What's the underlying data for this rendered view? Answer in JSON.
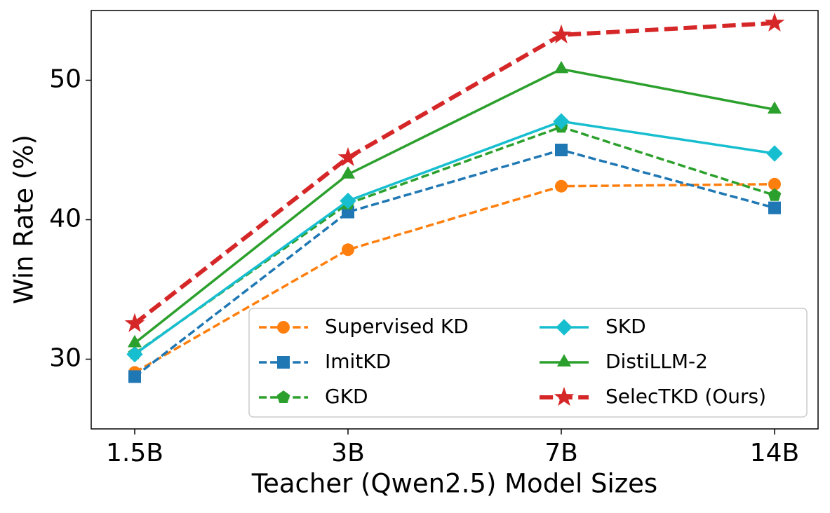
{
  "chart_data": {
    "type": "line",
    "xlabel": "Teacher (Qwen2.5) Model Sizes",
    "ylabel": "Win Rate (%)",
    "categories": [
      "1.5B",
      "3B",
      "7B",
      "14B"
    ],
    "ylim": [
      25,
      55
    ],
    "yticks": [
      30,
      40,
      50
    ],
    "legend": "lower right",
    "series": [
      {
        "name": "Supervised KD",
        "color": "#ff7f0e",
        "marker": "circle",
        "linestyle": "dashed",
        "linewidth": 3.5,
        "values": [
          29.05,
          37.85,
          42.4,
          42.55
        ]
      },
      {
        "name": "ImitKD",
        "color": "#1f77b4",
        "marker": "square",
        "linestyle": "dashed",
        "linewidth": 3.5,
        "values": [
          28.75,
          40.55,
          45.0,
          40.85
        ]
      },
      {
        "name": "GKD",
        "color": "#2ca02c",
        "marker": "pentagon",
        "linestyle": "dashed",
        "linewidth": 3.5,
        "values": [
          30.4,
          41.15,
          46.65,
          41.75
        ]
      },
      {
        "name": "SKD",
        "color": "#17becf",
        "marker": "diamond",
        "linestyle": "solid",
        "linewidth": 3.5,
        "values": [
          30.35,
          41.35,
          47.05,
          44.75
        ]
      },
      {
        "name": "DistiLLM-2",
        "color": "#2ca02c",
        "marker": "triangle",
        "linestyle": "solid",
        "linewidth": 3.5,
        "values": [
          31.15,
          43.25,
          50.8,
          47.9
        ]
      },
      {
        "name": "SelecTKD (Ours)",
        "color": "#d62728",
        "marker": "star",
        "linestyle": "dashed",
        "linewidth": 6,
        "values": [
          32.55,
          44.45,
          53.25,
          54.1
        ]
      }
    ]
  }
}
